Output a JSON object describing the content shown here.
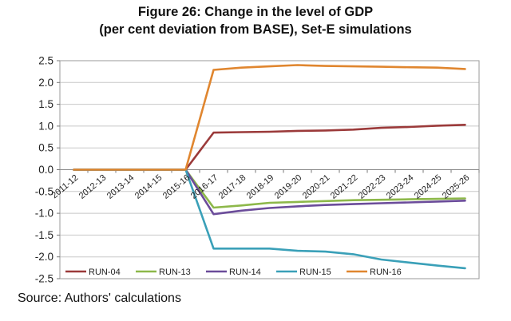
{
  "chart_data": {
    "type": "line",
    "title": "Figure 26: Change in the level of GDP",
    "subtitle": "(per cent deviation from BASE), Set-E simulations",
    "xlabel": "",
    "ylabel": "",
    "ylim": [
      -2.5,
      2.5
    ],
    "yticks": [
      "2.5",
      "2.0",
      "1.5",
      "1.0",
      "0.5",
      "0.0",
      "-0.5",
      "-1.0",
      "-1.5",
      "-2.0",
      "-2.5"
    ],
    "categories": [
      "2011-12",
      "2012-13",
      "2013-14",
      "2014-15",
      "2015-16",
      "2016-17",
      "2017-18",
      "2018-19",
      "2019-20",
      "2020-21",
      "2021-22",
      "2022-23",
      "2023-24",
      "2024-25",
      "2025-26"
    ],
    "grid": true,
    "legend_position": "bottom-inside",
    "series": [
      {
        "name": "RUN-04",
        "color": "#9b3a3a",
        "values": [
          0,
          0,
          0,
          0,
          0,
          0.85,
          0.86,
          0.87,
          0.89,
          0.9,
          0.92,
          0.96,
          0.98,
          1.01,
          1.03
        ]
      },
      {
        "name": "RUN-13",
        "color": "#8db84a",
        "values": [
          0,
          0,
          0,
          0,
          0,
          -0.87,
          -0.82,
          -0.76,
          -0.74,
          -0.72,
          -0.7,
          -0.69,
          -0.68,
          -0.67,
          -0.66
        ]
      },
      {
        "name": "RUN-14",
        "color": "#6b4c9a",
        "values": [
          0,
          0,
          0,
          0,
          0,
          -1.02,
          -0.94,
          -0.88,
          -0.84,
          -0.81,
          -0.79,
          -0.77,
          -0.75,
          -0.73,
          -0.71
        ]
      },
      {
        "name": "RUN-15",
        "color": "#3aa0b8",
        "values": [
          0,
          0,
          0,
          0,
          0,
          -1.81,
          -1.81,
          -1.81,
          -1.86,
          -1.88,
          -1.94,
          -2.06,
          -2.13,
          -2.2,
          -2.26
        ]
      },
      {
        "name": "RUN-16",
        "color": "#e0862f",
        "values": [
          0,
          0,
          0,
          0,
          0,
          2.29,
          2.34,
          2.37,
          2.4,
          2.38,
          2.37,
          2.36,
          2.35,
          2.34,
          2.31
        ]
      }
    ]
  },
  "source": "Source: Authors' calculations"
}
